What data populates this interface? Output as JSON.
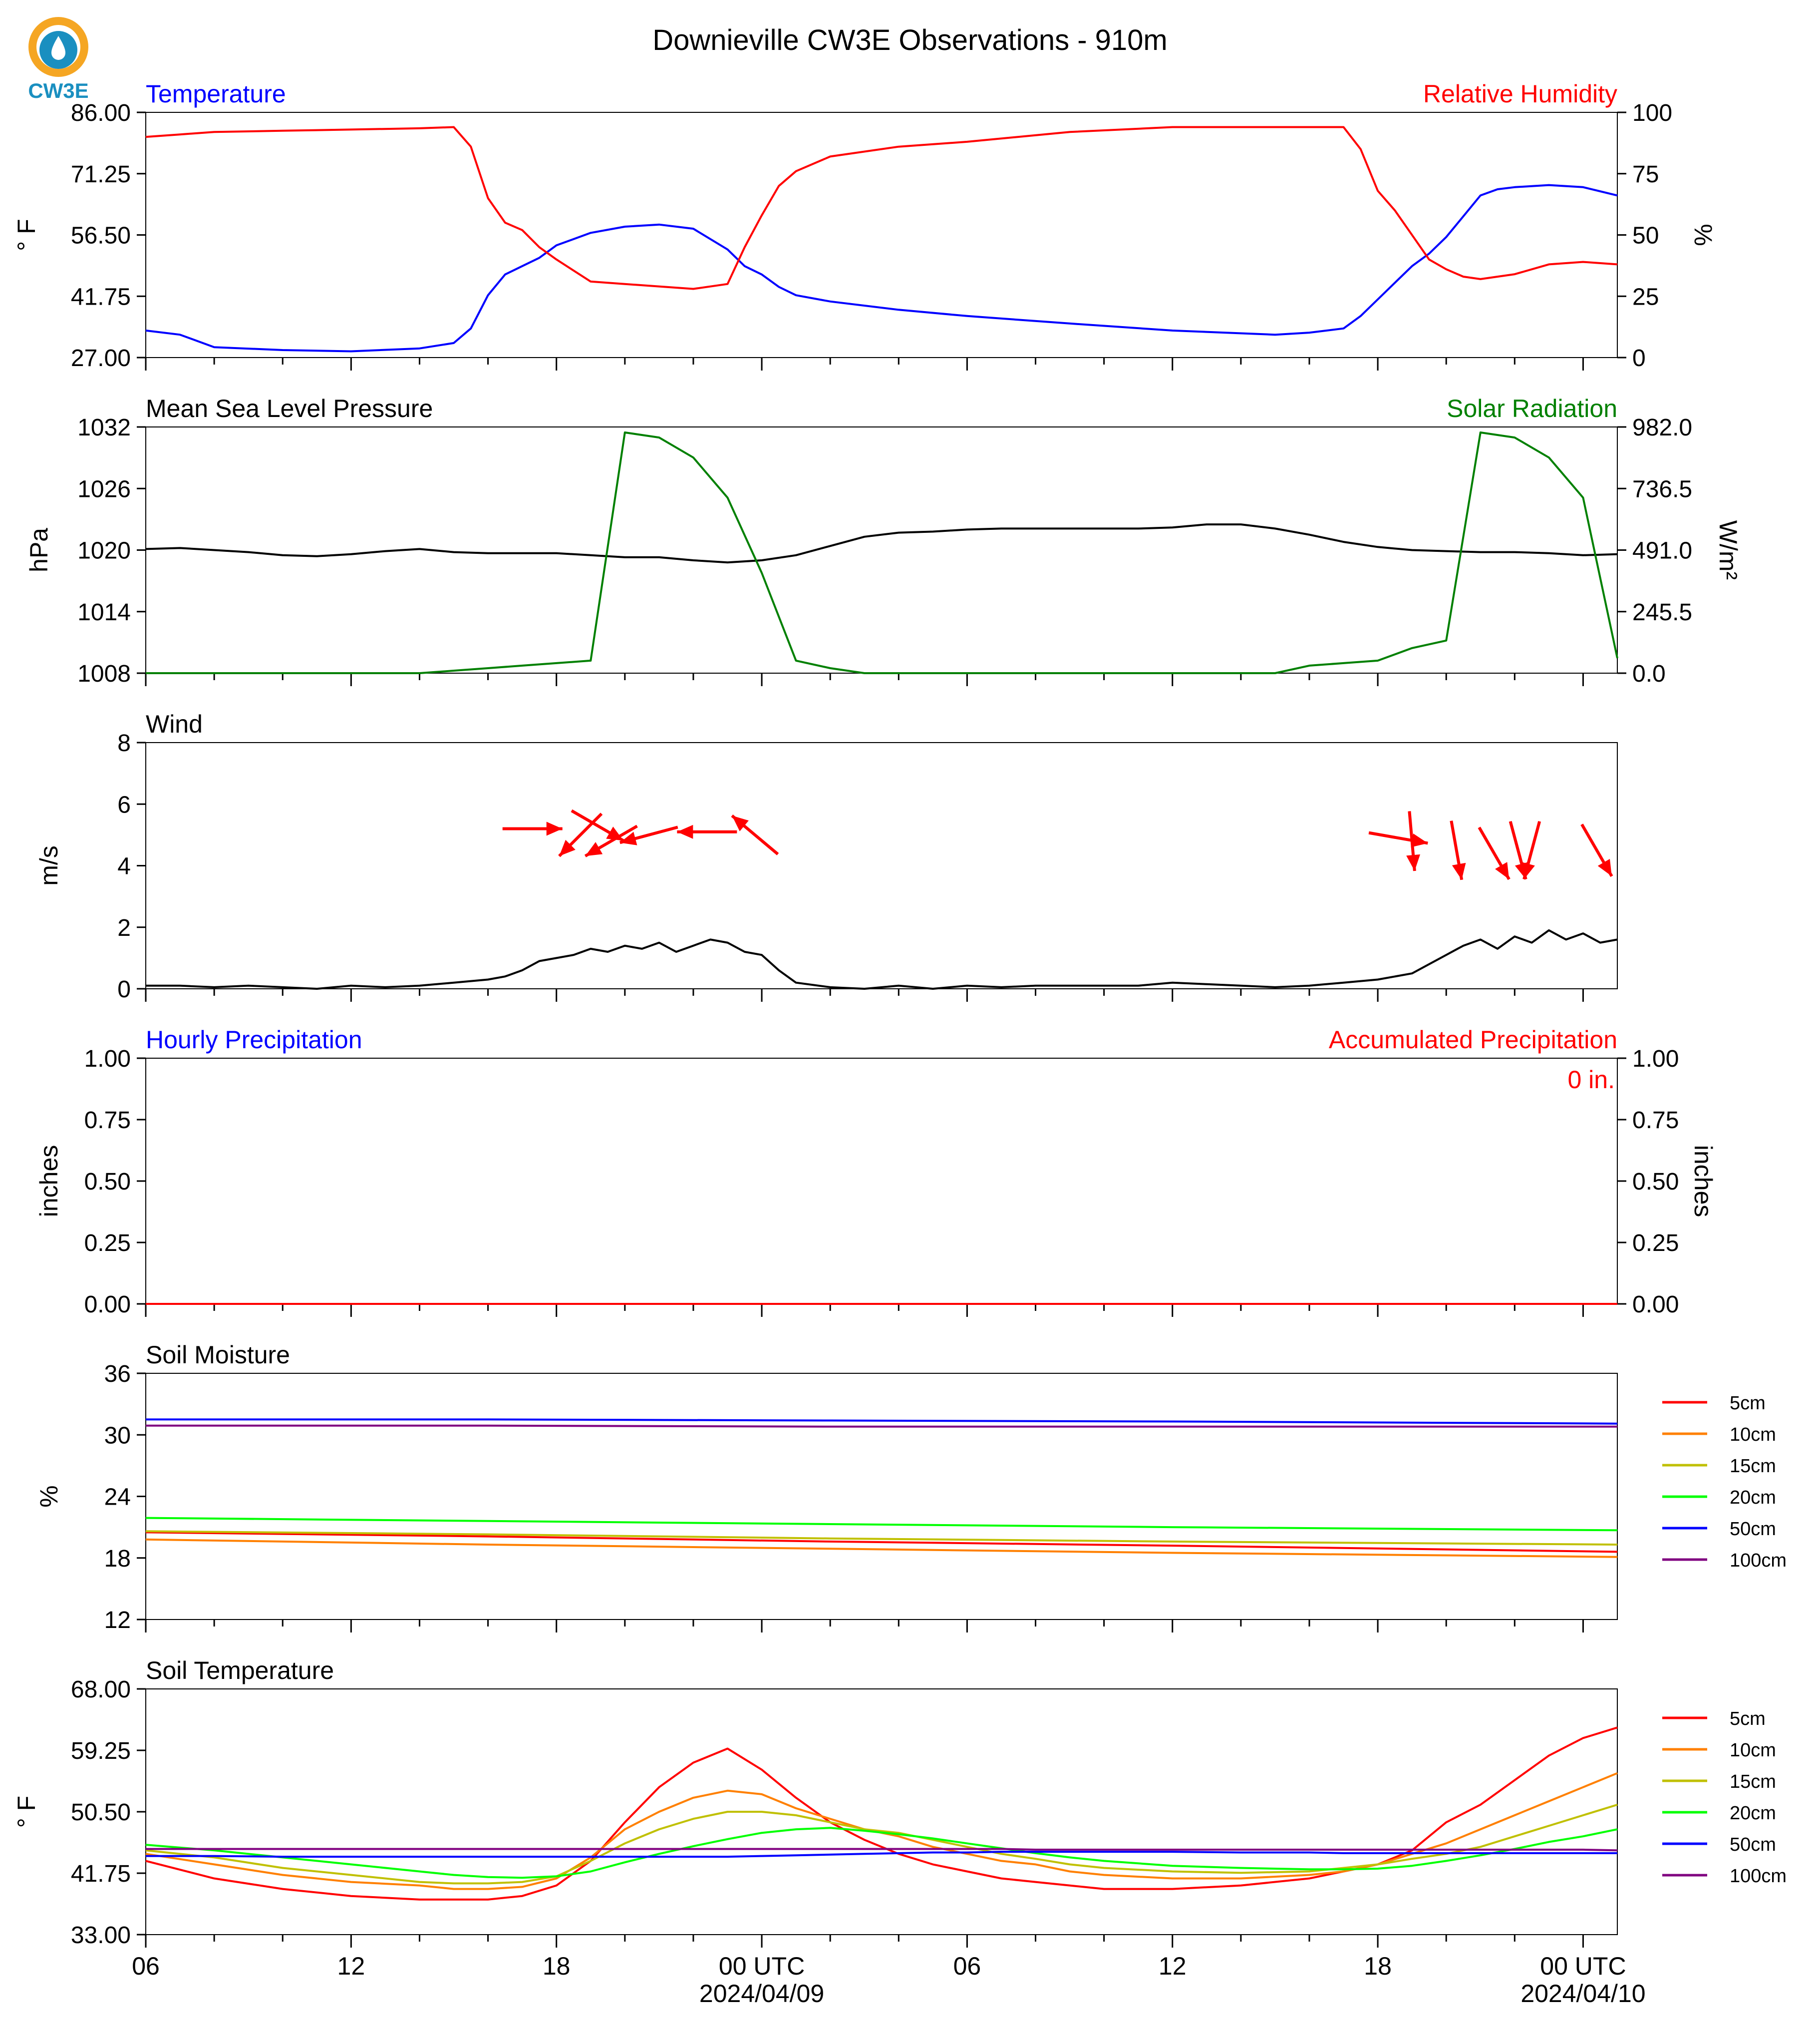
{
  "title": "Downieville CW3E Observations - 910m",
  "logo_text": "CW3E",
  "x_axis": {
    "tick_labels": [
      "06",
      "12",
      "18",
      "00 UTC",
      "06",
      "12",
      "18",
      "00 UTC"
    ],
    "date_labels": [
      "2024/04/09",
      "2024/04/10"
    ]
  },
  "chart_data": [
    {
      "type": "line",
      "left_title": "Temperature",
      "right_title": "Relative Humidity",
      "ylabel": "° F",
      "ylabel_right": "%",
      "ylim": [
        27,
        86
      ],
      "ylim_right": [
        0,
        100
      ],
      "yticks": [
        "86.00",
        "71.25",
        "56.50",
        "41.75",
        "27.00"
      ],
      "yticks_right": [
        "100",
        "75",
        "50",
        "25",
        "0"
      ],
      "colors": {
        "left": "#0000ff",
        "right": "#ff0000"
      },
      "x": [
        0,
        1,
        2,
        4,
        6,
        8,
        9,
        9.5,
        10,
        10.5,
        11,
        11.5,
        12,
        13,
        14,
        15,
        16,
        17,
        17.5,
        18,
        18.5,
        19,
        20,
        22,
        24,
        27,
        30,
        33,
        34,
        35,
        35.5,
        36,
        36.5,
        37,
        37.5,
        38,
        38.5,
        39,
        39.5,
        40,
        41,
        42,
        43
      ],
      "series": [
        {
          "name": "Temperature",
          "axis": "left",
          "values": [
            33.5,
            32.5,
            29.5,
            28.8,
            28.5,
            29.2,
            30.5,
            34,
            42,
            47,
            49,
            51,
            54,
            57,
            58.5,
            59,
            58,
            53,
            49,
            47,
            44,
            42,
            40.5,
            38.5,
            37,
            35.2,
            33.5,
            32.5,
            33,
            34,
            37,
            41,
            45,
            49,
            52,
            56,
            61,
            66,
            67.5,
            68,
            68.5,
            68,
            66
          ]
        },
        {
          "name": "Relative Humidity",
          "axis": "right",
          "values": [
            90,
            91,
            92,
            92.5,
            93,
            93.5,
            94,
            86,
            65,
            55,
            52,
            45,
            40,
            31,
            30,
            29,
            28,
            30,
            45,
            58,
            70,
            76,
            82,
            86,
            88,
            92,
            94,
            94,
            94,
            94,
            85,
            68,
            60,
            50,
            40,
            36,
            33,
            32,
            33,
            34,
            38,
            39,
            38
          ]
        }
      ]
    },
    {
      "type": "line",
      "left_title": "Mean Sea Level Pressure",
      "right_title": "Solar Radiation",
      "ylabel": "hPa",
      "ylabel_right": "W/m²",
      "ylim": [
        1008,
        1032
      ],
      "ylim_right": [
        0,
        982
      ],
      "yticks": [
        "1032",
        "1026",
        "1020",
        "1014",
        "1008"
      ],
      "yticks_right": [
        "982.0",
        "736.5",
        "491.0",
        "245.5",
        "0.0"
      ],
      "colors": {
        "left": "#000000",
        "right": "#008000"
      },
      "x": [
        0,
        1,
        2,
        3,
        4,
        5,
        6,
        7,
        8,
        9,
        10,
        11,
        12,
        13,
        14,
        15,
        16,
        17,
        18,
        19,
        20,
        21,
        22,
        23,
        24,
        25,
        26,
        27,
        28,
        29,
        30,
        31,
        32,
        33,
        34,
        35,
        36,
        37,
        38,
        39,
        40,
        41,
        42,
        43
      ],
      "series": [
        {
          "name": "Mean Sea Level Pressure",
          "axis": "left",
          "values": [
            1020.1,
            1020.2,
            1020.0,
            1019.8,
            1019.5,
            1019.4,
            1019.6,
            1019.9,
            1020.1,
            1019.8,
            1019.7,
            1019.7,
            1019.7,
            1019.5,
            1019.3,
            1019.3,
            1019.0,
            1018.8,
            1019.0,
            1019.5,
            1020.4,
            1021.3,
            1021.7,
            1021.8,
            1022.0,
            1022.1,
            1022.1,
            1022.1,
            1022.1,
            1022.1,
            1022.2,
            1022.5,
            1022.5,
            1022.1,
            1021.5,
            1020.8,
            1020.3,
            1020.0,
            1019.9,
            1019.8,
            1019.8,
            1019.7,
            1019.5,
            1019.6
          ]
        },
        {
          "name": "Solar Radiation",
          "axis": "right",
          "values": [
            0,
            0,
            0,
            0,
            0,
            0,
            0,
            0,
            0,
            10,
            20,
            30,
            40,
            50,
            960,
            940,
            860,
            700,
            400,
            50,
            20,
            0,
            0,
            0,
            0,
            0,
            0,
            0,
            0,
            0,
            0,
            0,
            0,
            0,
            30,
            40,
            50,
            100,
            130,
            960,
            940,
            860,
            700,
            60
          ]
        }
      ]
    },
    {
      "type": "line",
      "left_title": "Wind",
      "ylabel": "m/s",
      "ylim": [
        0,
        8
      ],
      "yticks": [
        "8",
        "6",
        "4",
        "2",
        "0"
      ],
      "colors": {
        "speed": "#000000",
        "arrows": "#ff0000"
      },
      "x": [
        0,
        1,
        2,
        3,
        4,
        5,
        6,
        7,
        8,
        9,
        10,
        10.5,
        11,
        11.5,
        12,
        12.5,
        13,
        13.5,
        14,
        14.5,
        15,
        15.5,
        16,
        16.5,
        17,
        17.5,
        18,
        18.5,
        19,
        20,
        21,
        22,
        23,
        24,
        25,
        26,
        27,
        28,
        29,
        30,
        31,
        32,
        33,
        34,
        35,
        36,
        37,
        37.5,
        38,
        38.5,
        39,
        39.5,
        40,
        40.5,
        41,
        41.5,
        42,
        42.5,
        43
      ],
      "series": [
        {
          "name": "Wind Speed",
          "values": [
            0.1,
            0.1,
            0.05,
            0.1,
            0.05,
            0,
            0.1,
            0.05,
            0.1,
            0.2,
            0.3,
            0.4,
            0.6,
            0.9,
            1.0,
            1.1,
            1.3,
            1.2,
            1.4,
            1.3,
            1.5,
            1.2,
            1.4,
            1.6,
            1.5,
            1.2,
            1.1,
            0.6,
            0.2,
            0.05,
            0,
            0.1,
            0,
            0.1,
            0.05,
            0.1,
            0.1,
            0.1,
            0.1,
            0.2,
            0.15,
            0.1,
            0.05,
            0.1,
            0.2,
            0.3,
            0.5,
            0.8,
            1.1,
            1.4,
            1.6,
            1.3,
            1.7,
            1.5,
            1.9,
            1.6,
            1.8,
            1.5,
            1.6
          ]
        }
      ],
      "wind_arrows": [
        {
          "x": 13.2,
          "speed": 5.3,
          "toward_deg": 120
        },
        {
          "x": 11.3,
          "speed": 5.2,
          "toward_deg": 90
        },
        {
          "x": 12.7,
          "speed": 5.0,
          "toward_deg": 225
        },
        {
          "x": 13.6,
          "speed": 4.8,
          "toward_deg": 240
        },
        {
          "x": 14.7,
          "speed": 5.0,
          "toward_deg": 255
        },
        {
          "x": 16.4,
          "speed": 5.1,
          "toward_deg": 270
        },
        {
          "x": 17.8,
          "speed": 5.0,
          "toward_deg": 310
        },
        {
          "x": 36.6,
          "speed": 4.9,
          "toward_deg": 100
        },
        {
          "x": 37.0,
          "speed": 4.8,
          "toward_deg": 175
        },
        {
          "x": 38.3,
          "speed": 4.5,
          "toward_deg": 170
        },
        {
          "x": 39.4,
          "speed": 4.4,
          "toward_deg": 150
        },
        {
          "x": 40.1,
          "speed": 4.5,
          "toward_deg": 165
        },
        {
          "x": 40.5,
          "speed": 4.5,
          "toward_deg": 195
        },
        {
          "x": 42.4,
          "speed": 4.5,
          "toward_deg": 150
        }
      ]
    },
    {
      "type": "line",
      "left_title": "Hourly Precipitation",
      "right_title": "Accumulated Precipitation",
      "ylabel": "inches",
      "ylabel_right": "inches",
      "ylim": [
        0,
        1
      ],
      "ylim_right": [
        0,
        1
      ],
      "yticks": [
        "1.00",
        "0.75",
        "0.50",
        "0.25",
        "0.00"
      ],
      "yticks_right": [
        "1.00",
        "0.75",
        "0.50",
        "0.25",
        "0.00"
      ],
      "colors": {
        "left": "#0000ff",
        "right": "#ff0000"
      },
      "annotation": "0 in.",
      "x": [
        0,
        43
      ],
      "series": [
        {
          "name": "Hourly Precipitation",
          "axis": "left",
          "values": [
            0,
            0
          ]
        },
        {
          "name": "Accumulated Precipitation",
          "axis": "right",
          "values": [
            0,
            0
          ]
        }
      ]
    },
    {
      "type": "line",
      "left_title": "Soil Moisture",
      "ylabel": "%",
      "ylim": [
        12,
        36
      ],
      "yticks": [
        "36",
        "30",
        "24",
        "18",
        "12"
      ],
      "x": [
        0,
        10,
        20,
        30,
        43
      ],
      "series": [
        {
          "name": "5cm",
          "color": "#ff0000",
          "values": [
            20.5,
            20.1,
            19.6,
            19.2,
            18.6
          ]
        },
        {
          "name": "10cm",
          "color": "#ff8000",
          "values": [
            19.8,
            19.3,
            18.9,
            18.5,
            18.1
          ]
        },
        {
          "name": "15cm",
          "color": "#c0c000",
          "values": [
            20.6,
            20.3,
            19.9,
            19.6,
            19.3
          ]
        },
        {
          "name": "20cm",
          "color": "#00ff00",
          "values": [
            21.9,
            21.6,
            21.3,
            21.0,
            20.7
          ]
        },
        {
          "name": "50cm",
          "color": "#0000ff",
          "values": [
            31.5,
            31.5,
            31.4,
            31.3,
            31.1
          ]
        },
        {
          "name": "100cm",
          "color": "#800080",
          "values": [
            30.9,
            30.9,
            30.8,
            30.8,
            30.8
          ]
        }
      ]
    },
    {
      "type": "line",
      "left_title": "Soil Temperature",
      "ylabel": "° F",
      "ylim": [
        33,
        68
      ],
      "yticks": [
        "68.00",
        "59.25",
        "50.50",
        "41.75",
        "33.00"
      ],
      "x": [
        0,
        2,
        4,
        6,
        8,
        9,
        10,
        11,
        12,
        13,
        14,
        15,
        16,
        17,
        18,
        19,
        20,
        21,
        22,
        23,
        24,
        25,
        26,
        27,
        28,
        30,
        32,
        34,
        35,
        36,
        37,
        38,
        39,
        40,
        41,
        42,
        43
      ],
      "series": [
        {
          "name": "5cm",
          "color": "#ff0000",
          "values": [
            43.5,
            41,
            39.5,
            38.5,
            38,
            38,
            38,
            38.5,
            40,
            43.5,
            49,
            54,
            57.5,
            59.5,
            56.5,
            52.5,
            49,
            46.5,
            44.5,
            43,
            42,
            41,
            40.5,
            40,
            39.5,
            39.5,
            40,
            41,
            42,
            43,
            45,
            49,
            51.5,
            55,
            58.5,
            61,
            62.5
          ]
        },
        {
          "name": "10cm",
          "color": "#ff8000",
          "values": [
            44.5,
            43,
            41.5,
            40.5,
            40,
            39.5,
            39.5,
            39.8,
            41,
            44,
            48,
            50.5,
            52.5,
            53.5,
            53,
            51,
            49.5,
            48,
            47,
            45.5,
            44.5,
            43.5,
            43,
            42,
            41.5,
            41,
            41,
            41.5,
            42,
            43,
            44.5,
            46,
            48,
            50,
            52,
            54,
            56
          ]
        },
        {
          "name": "15cm",
          "color": "#c0c000",
          "values": [
            45,
            44,
            42.5,
            41.5,
            40.5,
            40.3,
            40.3,
            40.5,
            41.3,
            43.5,
            46,
            48,
            49.5,
            50.5,
            50.5,
            50,
            49,
            48,
            47.5,
            46.5,
            45.5,
            44.5,
            43.8,
            43,
            42.5,
            42,
            41.8,
            42,
            42.5,
            43,
            43.8,
            44.5,
            45.5,
            47,
            48.5,
            50,
            51.5
          ]
        },
        {
          "name": "20cm",
          "color": "#00ff00",
          "values": [
            45.8,
            45,
            44,
            43,
            42,
            41.5,
            41.2,
            41.1,
            41.3,
            42,
            43.3,
            44.5,
            45.6,
            46.6,
            47.5,
            48,
            48.2,
            47.8,
            47.3,
            46.7,
            46,
            45.3,
            44.6,
            44,
            43.5,
            42.8,
            42.5,
            42.3,
            42.3,
            42.4,
            42.8,
            43.5,
            44.3,
            45.2,
            46.2,
            47,
            48
          ]
        },
        {
          "name": "50cm",
          "color": "#0000ff",
          "values": [
            44.2,
            44.2,
            44.1,
            44.1,
            44.1,
            44.1,
            44.1,
            44.1,
            44.1,
            44.1,
            44.1,
            44.1,
            44.1,
            44.1,
            44.2,
            44.3,
            44.4,
            44.5,
            44.6,
            44.7,
            44.7,
            44.8,
            44.8,
            44.8,
            44.8,
            44.8,
            44.7,
            44.7,
            44.6,
            44.6,
            44.6,
            44.6,
            44.6,
            44.6,
            44.6,
            44.6,
            44.6
          ]
        },
        {
          "name": "100cm",
          "color": "#800080",
          "values": [
            45.2,
            45.2,
            45.2,
            45.2,
            45.2,
            45.2,
            45.2,
            45.2,
            45.2,
            45.2,
            45.2,
            45.2,
            45.2,
            45.2,
            45.2,
            45.2,
            45.2,
            45.2,
            45.2,
            45.2,
            45.2,
            45.2,
            45.1,
            45.1,
            45.1,
            45.1,
            45.1,
            45.1,
            45.1,
            45.1,
            45.1,
            45.1,
            45.1,
            45.1,
            45.1,
            45.1,
            45.0
          ]
        }
      ]
    }
  ]
}
